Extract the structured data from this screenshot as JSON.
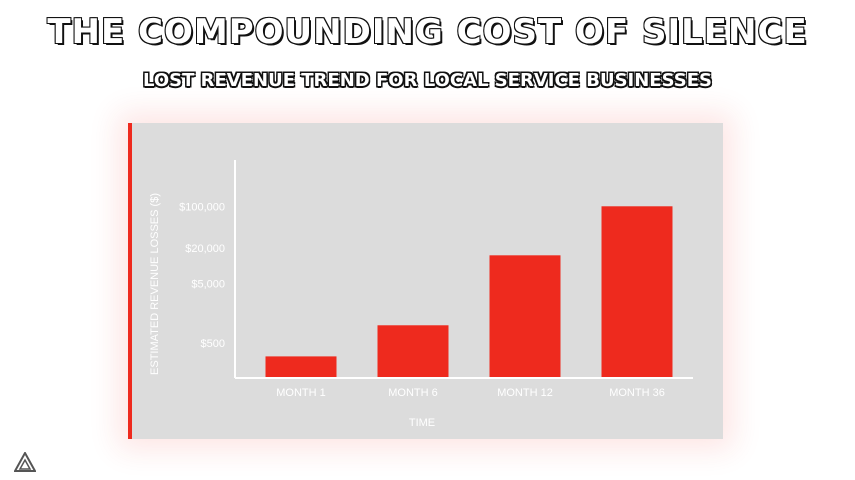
{
  "header": {
    "title": "THE COMPOUNDING COST OF SILENCE",
    "subtitle": "LOST REVENUE TREND FOR LOCAL SERVICE BUSINESSES"
  },
  "colors": {
    "bar": "#ee2a1e",
    "panel": "#dcdcdc",
    "axis": "#ffffff",
    "accent": "#ee2a1e"
  },
  "logo_icon": "triangle-logo-icon",
  "chart_data": {
    "type": "bar",
    "title": "",
    "xlabel": "TIME",
    "ylabel": "ESTIMATED REVENUE LOSSES ($)",
    "scale": "log",
    "ylim": [
      130,
      600000
    ],
    "categories": [
      "MONTH 1",
      "MONTH 6",
      "MONTH 12",
      "MONTH 36"
    ],
    "values": [
      300,
      1000,
      15000,
      100000
    ],
    "yticks": [
      500,
      5000,
      20000,
      100000
    ],
    "ytick_labels": [
      "$500",
      "$5,000",
      "$20,000",
      "$100,000"
    ],
    "grid": false,
    "legend": "none"
  }
}
